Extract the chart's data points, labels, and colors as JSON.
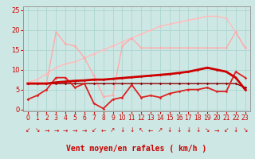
{
  "bg_color": "#cde8e4",
  "grid_color": "#b0d8d4",
  "xlabel": "Vent moyen/en rafales ( km/h )",
  "xlabel_color": "#cc0000",
  "xlabel_fontsize": 7,
  "yticks": [
    0,
    5,
    10,
    15,
    20,
    25
  ],
  "xlim": [
    -0.5,
    23.5
  ],
  "ylim": [
    -0.5,
    26
  ],
  "x": [
    0,
    1,
    2,
    3,
    4,
    5,
    6,
    7,
    8,
    9,
    10,
    11,
    12,
    13,
    14,
    15,
    16,
    17,
    18,
    19,
    20,
    21,
    22,
    23
  ],
  "line1_y": [
    6.7,
    6.7,
    6.7,
    19.5,
    16.5,
    16.0,
    13.0,
    8.5,
    3.2,
    3.5,
    16.0,
    18.0,
    15.5,
    15.5,
    15.5,
    15.5,
    15.5,
    15.5,
    15.5,
    15.5,
    15.5,
    15.5,
    19.5,
    15.5
  ],
  "line1_color": "#ffaaaa",
  "line1_lw": 1.0,
  "line2_y": [
    6.8,
    7.5,
    9.0,
    10.5,
    11.5,
    12.0,
    13.0,
    14.0,
    15.0,
    16.0,
    17.0,
    18.0,
    19.0,
    20.0,
    21.0,
    21.5,
    22.0,
    22.5,
    23.0,
    23.5,
    23.5,
    23.0,
    19.5,
    15.5
  ],
  "line2_color": "#ffbbbb",
  "line2_lw": 1.0,
  "line3_y": [
    2.5,
    3.5,
    5.0,
    8.0,
    8.0,
    5.5,
    6.5,
    1.5,
    0.2,
    2.5,
    3.0,
    6.2,
    3.0,
    3.5,
    3.0,
    4.0,
    4.5,
    5.0,
    5.0,
    5.5,
    4.5,
    4.5,
    9.5,
    8.0
  ],
  "line3_color": "#dd2222",
  "line3_lw": 1.3,
  "line4_y": [
    6.5,
    6.5,
    6.5,
    6.8,
    7.0,
    7.2,
    7.3,
    7.5,
    7.5,
    7.7,
    7.9,
    8.1,
    8.3,
    8.5,
    8.7,
    8.9,
    9.2,
    9.5,
    10.0,
    10.5,
    10.0,
    9.5,
    8.0,
    5.0
  ],
  "line4_color": "#cc0000",
  "line4_lw": 2.0,
  "line5_y": [
    6.5,
    6.5,
    6.5,
    6.5,
    6.5,
    6.5,
    6.5,
    6.5,
    6.5,
    6.5,
    6.5,
    6.5,
    6.5,
    6.5,
    6.5,
    6.5,
    6.5,
    6.5,
    6.5,
    6.5,
    6.5,
    6.5,
    6.5,
    5.5
  ],
  "line5_color": "#880000",
  "line5_lw": 1.0,
  "arrows": [
    "↙",
    "↘",
    "→",
    "→",
    "→",
    "→",
    "→",
    "↙",
    "←",
    "↗",
    "↓",
    "↓",
    "↖",
    "←",
    "↗",
    "↓",
    "↓",
    "↓",
    "↓",
    "↘",
    "→",
    "↙",
    "↓",
    "↘"
  ],
  "tick_color": "#cc0000",
  "ytick_fontsize": 6,
  "xtick_fontsize": 5.5,
  "arrow_fontsize": 5.5
}
